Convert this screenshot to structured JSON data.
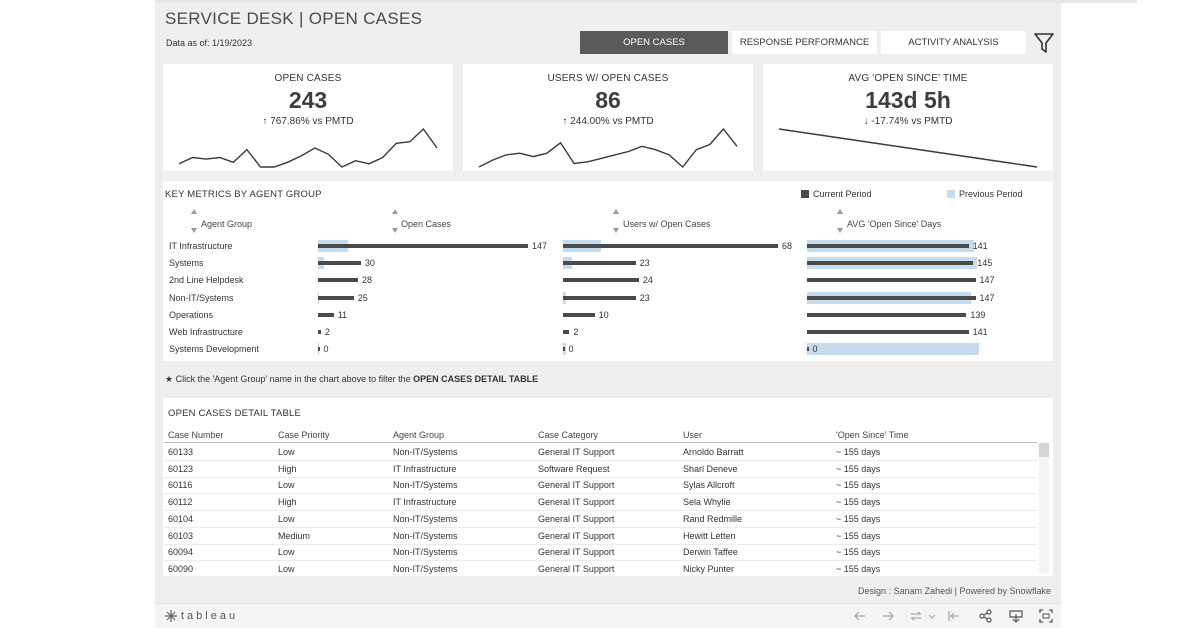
{
  "dashboard": {
    "title": "SERVICE DESK | OPEN CASES",
    "as_of": "Data as of: 1/19/2023"
  },
  "tabs": [
    {
      "label": "OPEN CASES",
      "active": true
    },
    {
      "label": "RESPONSE PERFORMANCE",
      "active": false
    },
    {
      "label": "ACTIVITY ANALYSIS",
      "active": false
    }
  ],
  "kpis": [
    {
      "title": "OPEN CASES",
      "value": "243",
      "delta": "↑ 767.86% vs PMTD",
      "spark": [
        8,
        12,
        11,
        12,
        9,
        17,
        6,
        6,
        9,
        13,
        18,
        14,
        6,
        10,
        8,
        12,
        21,
        22,
        30,
        18
      ]
    },
    {
      "title": "USERS W/ OPEN CASES",
      "value": "86",
      "delta": "↑ 244.00% vs PMTD",
      "spark": [
        6,
        10,
        13,
        14,
        12,
        14,
        20,
        8,
        9,
        11,
        13,
        15,
        18,
        16,
        13,
        6,
        16,
        19,
        28,
        18
      ]
    },
    {
      "title": "AVG 'OPEN SINCE' TIME",
      "value": "143d 5h",
      "delta": "↓ -17.74% vs PMTD",
      "spark": [
        26,
        25,
        24,
        23,
        22,
        21,
        20,
        19,
        18,
        17,
        16,
        15,
        14,
        13,
        12,
        11,
        10,
        9,
        8,
        7
      ]
    }
  ],
  "metrics": {
    "title": "KEY METRICS BY AGENT GROUP",
    "legend": {
      "current": "Current Period",
      "previous": "Previous Period",
      "current_color": "#4a4a4a",
      "previous_color": "#c5dcee"
    },
    "columns": {
      "agent": "Agent Group",
      "open": "Open Cases",
      "users": "Users w/ Open Cases",
      "avg": "AVG 'Open Since' Days"
    },
    "rows": [
      {
        "group": "IT Infrastructure",
        "open": 147,
        "open_prev": 21,
        "users": 68,
        "users_prev": 12,
        "avg": 141,
        "avg_prev": 146
      },
      {
        "group": "Systems",
        "open": 30,
        "open_prev": 4,
        "users": 23,
        "users_prev": 3,
        "avg": 145,
        "avg_prev": 148
      },
      {
        "group": "2nd Line Helpdesk",
        "open": 28,
        "open_prev": 0,
        "users": 24,
        "users_prev": 0,
        "avg": 147,
        "avg_prev": 0
      },
      {
        "group": "Non-IT/Systems",
        "open": 25,
        "open_prev": 1,
        "users": 23,
        "users_prev": 1,
        "avg": 147,
        "avg_prev": 143
      },
      {
        "group": "Operations",
        "open": 11,
        "open_prev": 0,
        "users": 10,
        "users_prev": 0,
        "avg": 139,
        "avg_prev": 0
      },
      {
        "group": "Web Infrastructure",
        "open": 2,
        "open_prev": 0,
        "users": 2,
        "users_prev": 0,
        "avg": 141,
        "avg_prev": 0
      },
      {
        "group": "Systems Development",
        "open": 0,
        "open_prev": 1,
        "users": 0,
        "users_prev": 1,
        "avg": 0,
        "avg_prev": 150
      }
    ]
  },
  "note": {
    "prefix": "★ Click the 'Agent Group' name in the chart above to filter the ",
    "bold": "OPEN CASES DETAIL TABLE"
  },
  "detail": {
    "title": "OPEN CASES DETAIL TABLE",
    "headers": [
      "Case Number",
      "Case Priority",
      "Agent Group",
      "Case Category",
      "User",
      "'Open Since' Time"
    ],
    "rows": [
      [
        "60133",
        "Low",
        "Non-IT/Systems",
        "General IT Support",
        "Arnoldo Barratt",
        "~ 155 days"
      ],
      [
        "60123",
        "High",
        "IT Infrastructure",
        "Software Request",
        "Sharl Deneve",
        "~ 155 days"
      ],
      [
        "60116",
        "Low",
        "Non-IT/Systems",
        "General IT Support",
        "Sylas Allcroft",
        "~ 155 days"
      ],
      [
        "60112",
        "High",
        "IT Infrastructure",
        "General IT Support",
        "Sela Whylie",
        "~ 155 days"
      ],
      [
        "60104",
        "Low",
        "Non-IT/Systems",
        "General IT Support",
        "Rand Redmille",
        "~ 155 days"
      ],
      [
        "60103",
        "Medium",
        "Non-IT/Systems",
        "General IT Support",
        "Hewitt Letten",
        "~ 155 days"
      ],
      [
        "60094",
        "Low",
        "Non-IT/Systems",
        "General IT Support",
        "Derwin Taffee",
        "~ 155 days"
      ],
      [
        "60090",
        "Low",
        "Non-IT/Systems",
        "General IT Support",
        "Nicky Punter",
        "~ 155 days"
      ]
    ]
  },
  "footer": "Design : Sanam Zahedi | Powered by Snowflake",
  "toolbar": {
    "logo": "tableau"
  }
}
